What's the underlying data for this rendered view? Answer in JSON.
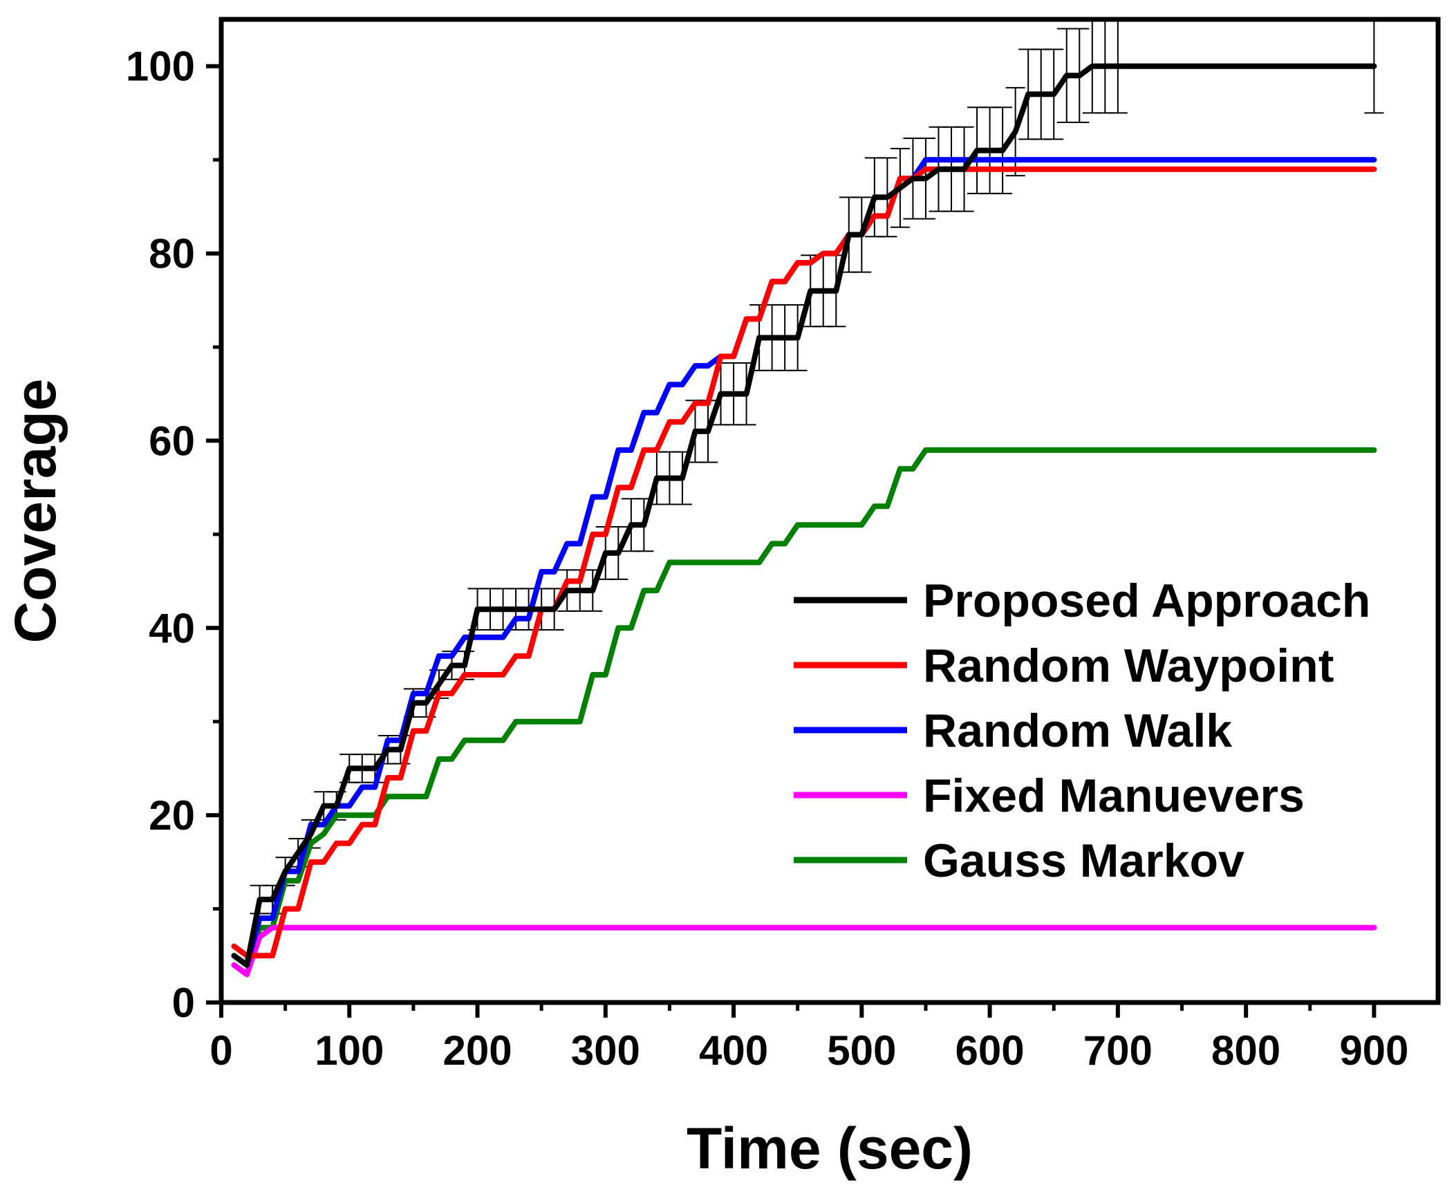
{
  "chart_data": {
    "type": "line",
    "title": "",
    "xlabel": "Time (sec)",
    "ylabel": "Coverage",
    "xlim": [
      0,
      950
    ],
    "ylim": [
      0,
      105
    ],
    "xticks": [
      0,
      100,
      200,
      300,
      400,
      500,
      600,
      700,
      800,
      900
    ],
    "yticks": [
      0,
      20,
      40,
      60,
      80,
      100
    ],
    "grid": false,
    "legend_position": "center-right",
    "series": [
      {
        "name": "Proposed Approach",
        "color": "#000000",
        "x": [
          10,
          20,
          30,
          40,
          50,
          60,
          70,
          80,
          90,
          100,
          110,
          120,
          130,
          140,
          150,
          160,
          170,
          180,
          190,
          200,
          210,
          220,
          230,
          240,
          250,
          260,
          270,
          280,
          290,
          300,
          310,
          320,
          330,
          340,
          350,
          360,
          370,
          380,
          390,
          400,
          410,
          420,
          430,
          440,
          450,
          460,
          470,
          480,
          490,
          500,
          510,
          520,
          530,
          540,
          550,
          560,
          570,
          580,
          590,
          600,
          610,
          620,
          630,
          640,
          650,
          660,
          670,
          680,
          690,
          700,
          900
        ],
        "y": [
          5,
          4,
          11,
          11,
          14,
          16,
          18,
          21,
          21,
          25,
          25,
          25,
          27,
          27,
          32,
          32,
          34,
          36,
          36,
          42,
          42,
          42,
          42,
          42,
          42,
          42,
          44,
          44,
          44,
          48,
          48,
          51,
          51,
          56,
          56,
          56,
          61,
          61,
          65,
          65,
          65,
          71,
          71,
          71,
          71,
          76,
          76,
          76,
          82,
          82,
          86,
          86,
          87,
          88,
          88,
          89,
          89,
          89,
          91,
          91,
          91,
          93,
          97,
          97,
          97,
          99,
          99,
          100,
          100,
          100,
          100
        ],
        "error": [
          0,
          0,
          1.5,
          1.5,
          1.5,
          1.5,
          1.5,
          1.5,
          1.5,
          1.5,
          1.5,
          1.5,
          1.5,
          1.5,
          1.5,
          1.5,
          1.5,
          1.5,
          1.5,
          2.2,
          2.2,
          2.2,
          2.2,
          2.2,
          2.2,
          2.2,
          2.2,
          2.2,
          2.2,
          2.8,
          2.8,
          2.8,
          2.8,
          2.8,
          2.8,
          2.8,
          3.3,
          3.3,
          3.3,
          3.3,
          3.3,
          3.5,
          3.5,
          3.5,
          3.5,
          3.8,
          3.8,
          3.8,
          4,
          4,
          4.2,
          4.2,
          4.2,
          4.3,
          4.3,
          4.5,
          4.5,
          4.5,
          4.6,
          4.6,
          4.6,
          4.7,
          4.8,
          4.8,
          4.8,
          5,
          5,
          5,
          5,
          5,
          5
        ]
      },
      {
        "name": "Random Waypoint",
        "color": "#ff0000",
        "x": [
          10,
          20,
          30,
          40,
          50,
          60,
          70,
          80,
          90,
          100,
          110,
          120,
          130,
          140,
          150,
          160,
          170,
          180,
          190,
          200,
          210,
          220,
          230,
          240,
          250,
          260,
          270,
          280,
          290,
          300,
          310,
          320,
          330,
          340,
          350,
          360,
          370,
          380,
          390,
          400,
          410,
          420,
          430,
          440,
          450,
          460,
          470,
          480,
          490,
          500,
          510,
          520,
          530,
          540,
          550,
          560,
          900
        ],
        "y": [
          6,
          5,
          5,
          5,
          10,
          10,
          15,
          15,
          17,
          17,
          19,
          19,
          24,
          24,
          29,
          29,
          33,
          33,
          35,
          35,
          35,
          35,
          37,
          37,
          42,
          42,
          45,
          45,
          50,
          50,
          55,
          55,
          59,
          59,
          62,
          62,
          64,
          64,
          69,
          69,
          73,
          73,
          77,
          77,
          79,
          79,
          80,
          80,
          82,
          82,
          84,
          84,
          88,
          88,
          89,
          89,
          89
        ]
      },
      {
        "name": "Random Walk",
        "color": "#0000ff",
        "x": [
          10,
          20,
          30,
          40,
          50,
          60,
          70,
          80,
          90,
          100,
          110,
          120,
          130,
          140,
          150,
          160,
          170,
          180,
          190,
          200,
          210,
          220,
          230,
          240,
          250,
          260,
          270,
          280,
          290,
          300,
          310,
          320,
          330,
          340,
          350,
          360,
          370,
          380,
          390,
          400,
          410,
          420,
          430,
          440,
          450,
          460,
          470,
          480,
          490,
          500,
          510,
          520,
          530,
          540,
          550,
          900
        ],
        "y": [
          5,
          4,
          9,
          9,
          14,
          14,
          19,
          19,
          21,
          21,
          23,
          23,
          28,
          28,
          33,
          33,
          37,
          37,
          39,
          39,
          39,
          39,
          41,
          41,
          46,
          46,
          49,
          49,
          54,
          54,
          59,
          59,
          63,
          63,
          66,
          66,
          68,
          68,
          69,
          69,
          73,
          73,
          77,
          77,
          79,
          79,
          80,
          80,
          82,
          82,
          84,
          84,
          88,
          88,
          90,
          90
        ]
      },
      {
        "name": "Fixed Manuevers",
        "color": "#ff00ff",
        "x": [
          10,
          20,
          30,
          40,
          900
        ],
        "y": [
          4,
          3,
          7,
          8,
          8
        ]
      },
      {
        "name": "Gauss Markov",
        "color": "#008000",
        "x": [
          10,
          20,
          30,
          40,
          50,
          60,
          70,
          80,
          90,
          100,
          110,
          120,
          130,
          140,
          150,
          160,
          170,
          180,
          190,
          200,
          210,
          220,
          230,
          240,
          250,
          260,
          270,
          280,
          290,
          300,
          310,
          320,
          330,
          340,
          350,
          360,
          370,
          380,
          390,
          400,
          410,
          420,
          430,
          440,
          450,
          460,
          470,
          480,
          490,
          500,
          510,
          520,
          530,
          540,
          550,
          900
        ],
        "y": [
          4,
          3,
          8,
          8,
          13,
          13,
          17,
          18,
          20,
          20,
          20,
          20,
          22,
          22,
          22,
          22,
          26,
          26,
          28,
          28,
          28,
          28,
          30,
          30,
          30,
          30,
          30,
          30,
          35,
          35,
          40,
          40,
          44,
          44,
          47,
          47,
          47,
          47,
          47,
          47,
          47,
          47,
          49,
          49,
          51,
          51,
          51,
          51,
          51,
          51,
          53,
          53,
          57,
          57,
          59,
          59
        ]
      }
    ]
  }
}
